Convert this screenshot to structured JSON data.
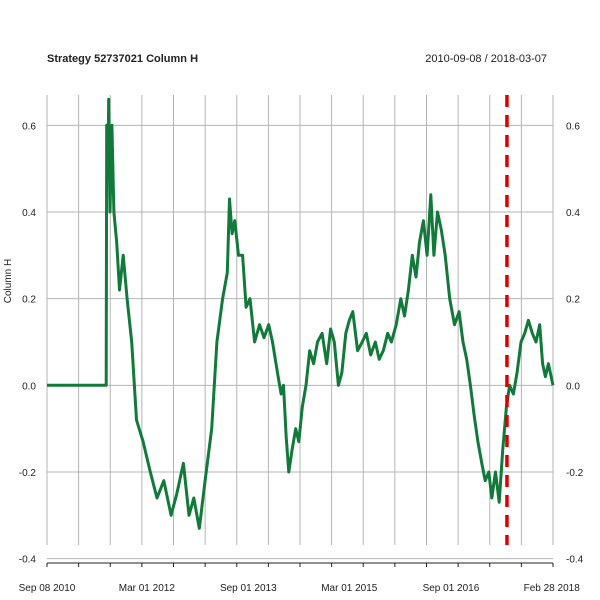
{
  "chart_data": {
    "type": "line",
    "title": "Strategy 52737021 Column H",
    "date_range": "2010-09-08 / 2018-03-07",
    "ylabel": "Column H",
    "xlabel": "",
    "xlim": [
      "2010-09-08",
      "2018-03-07"
    ],
    "ylim": [
      -0.41,
      0.67
    ],
    "yticks": [
      -0.4,
      -0.2,
      0.0,
      0.2,
      0.4,
      0.6
    ],
    "ytick_labels": [
      "-0.4",
      "-0.2",
      "0.0",
      "0.2",
      "0.4",
      "0.6"
    ],
    "xticks": [
      {
        "date": "2010-09-08",
        "label": "Sep 08 2010"
      },
      {
        "date": "2012-03-01",
        "label": "Mar 01 2012"
      },
      {
        "date": "2013-09-01",
        "label": "Sep 01 2013"
      },
      {
        "date": "2015-03-01",
        "label": "Mar 01 2015"
      },
      {
        "date": "2016-09-01",
        "label": "Sep 01 2016"
      },
      {
        "date": "2018-02-28",
        "label": "Feb 28 2018"
      }
    ],
    "grid": true,
    "vline": {
      "date": "2017-07-01",
      "color": "#dd0000",
      "style": "dashed"
    },
    "series": [
      {
        "color": "#117a3a",
        "points": [
          [
            "2010-09-08",
            0.0
          ],
          [
            "2011-02-01",
            0.0
          ],
          [
            "2011-07-25",
            0.0
          ],
          [
            "2011-07-28",
            0.6
          ],
          [
            "2011-08-03",
            0.48
          ],
          [
            "2011-08-08",
            0.66
          ],
          [
            "2011-08-15",
            0.4
          ],
          [
            "2011-08-25",
            0.6
          ],
          [
            "2011-09-05",
            0.4
          ],
          [
            "2011-09-20",
            0.33
          ],
          [
            "2011-10-05",
            0.22
          ],
          [
            "2011-10-25",
            0.3
          ],
          [
            "2011-11-15",
            0.2
          ],
          [
            "2011-12-10",
            0.1
          ],
          [
            "2012-01-05",
            -0.08
          ],
          [
            "2012-02-10",
            -0.13
          ],
          [
            "2012-03-20",
            -0.2
          ],
          [
            "2012-04-25",
            -0.26
          ],
          [
            "2012-06-01",
            -0.22
          ],
          [
            "2012-07-10",
            -0.3
          ],
          [
            "2012-08-10",
            -0.25
          ],
          [
            "2012-09-15",
            -0.18
          ],
          [
            "2012-10-15",
            -0.3
          ],
          [
            "2012-11-10",
            -0.26
          ],
          [
            "2012-12-10",
            -0.33
          ],
          [
            "2013-01-10",
            -0.22
          ],
          [
            "2013-02-15",
            -0.1
          ],
          [
            "2013-03-15",
            0.1
          ],
          [
            "2013-04-15",
            0.2
          ],
          [
            "2013-05-10",
            0.26
          ],
          [
            "2013-05-22",
            0.43
          ],
          [
            "2013-06-05",
            0.35
          ],
          [
            "2013-06-20",
            0.38
          ],
          [
            "2013-07-10",
            0.3
          ],
          [
            "2013-08-01",
            0.3
          ],
          [
            "2013-08-20",
            0.18
          ],
          [
            "2013-09-10",
            0.2
          ],
          [
            "2013-10-05",
            0.1
          ],
          [
            "2013-11-01",
            0.14
          ],
          [
            "2013-11-25",
            0.11
          ],
          [
            "2013-12-20",
            0.14
          ],
          [
            "2014-01-10",
            0.1
          ],
          [
            "2014-02-05",
            0.03
          ],
          [
            "2014-02-25",
            -0.02
          ],
          [
            "2014-03-10",
            0.0
          ],
          [
            "2014-03-25",
            -0.12
          ],
          [
            "2014-04-08",
            -0.2
          ],
          [
            "2014-04-25",
            -0.15
          ],
          [
            "2014-05-15",
            -0.1
          ],
          [
            "2014-06-01",
            -0.13
          ],
          [
            "2014-06-20",
            -0.05
          ],
          [
            "2014-07-10",
            0.0
          ],
          [
            "2014-07-30",
            0.08
          ],
          [
            "2014-08-20",
            0.05
          ],
          [
            "2014-09-10",
            0.1
          ],
          [
            "2014-10-05",
            0.12
          ],
          [
            "2014-10-30",
            0.05
          ],
          [
            "2014-11-20",
            0.13
          ],
          [
            "2014-12-10",
            0.1
          ],
          [
            "2015-01-01",
            0.0
          ],
          [
            "2015-01-20",
            0.03
          ],
          [
            "2015-02-10",
            0.12
          ],
          [
            "2015-03-01",
            0.15
          ],
          [
            "2015-03-20",
            0.17
          ],
          [
            "2015-04-15",
            0.08
          ],
          [
            "2015-05-10",
            0.1
          ],
          [
            "2015-06-01",
            0.12
          ],
          [
            "2015-06-25",
            0.07
          ],
          [
            "2015-07-20",
            0.1
          ],
          [
            "2015-08-10",
            0.06
          ],
          [
            "2015-09-01",
            0.08
          ],
          [
            "2015-09-25",
            0.12
          ],
          [
            "2015-10-15",
            0.1
          ],
          [
            "2015-11-10",
            0.14
          ],
          [
            "2015-12-05",
            0.2
          ],
          [
            "2015-12-25",
            0.16
          ],
          [
            "2016-01-15",
            0.22
          ],
          [
            "2016-02-05",
            0.3
          ],
          [
            "2016-02-25",
            0.25
          ],
          [
            "2016-03-15",
            0.33
          ],
          [
            "2016-04-05",
            0.38
          ],
          [
            "2016-04-25",
            0.3
          ],
          [
            "2016-05-15",
            0.44
          ],
          [
            "2016-06-01",
            0.3
          ],
          [
            "2016-06-20",
            0.4
          ],
          [
            "2016-07-10",
            0.36
          ],
          [
            "2016-08-01",
            0.3
          ],
          [
            "2016-08-25",
            0.2
          ],
          [
            "2016-09-20",
            0.14
          ],
          [
            "2016-10-15",
            0.17
          ],
          [
            "2016-11-05",
            0.1
          ],
          [
            "2016-11-25",
            0.06
          ],
          [
            "2016-12-15",
            0.0
          ],
          [
            "2017-01-05",
            -0.07
          ],
          [
            "2017-01-25",
            -0.13
          ],
          [
            "2017-02-15",
            -0.18
          ],
          [
            "2017-03-05",
            -0.22
          ],
          [
            "2017-03-25",
            -0.2
          ],
          [
            "2017-04-10",
            -0.26
          ],
          [
            "2017-04-30",
            -0.2
          ],
          [
            "2017-05-20",
            -0.27
          ],
          [
            "2017-06-08",
            -0.15
          ],
          [
            "2017-06-28",
            -0.05
          ],
          [
            "2017-07-15",
            0.0
          ],
          [
            "2017-08-05",
            -0.02
          ],
          [
            "2017-08-25",
            0.03
          ],
          [
            "2017-09-15",
            0.1
          ],
          [
            "2017-10-05",
            0.12
          ],
          [
            "2017-10-25",
            0.15
          ],
          [
            "2017-11-15",
            0.12
          ],
          [
            "2017-12-05",
            0.1
          ],
          [
            "2017-12-25",
            0.14
          ],
          [
            "2018-01-10",
            0.05
          ],
          [
            "2018-01-25",
            0.02
          ],
          [
            "2018-02-10",
            0.05
          ],
          [
            "2018-03-07",
            0.0
          ]
        ]
      }
    ]
  }
}
